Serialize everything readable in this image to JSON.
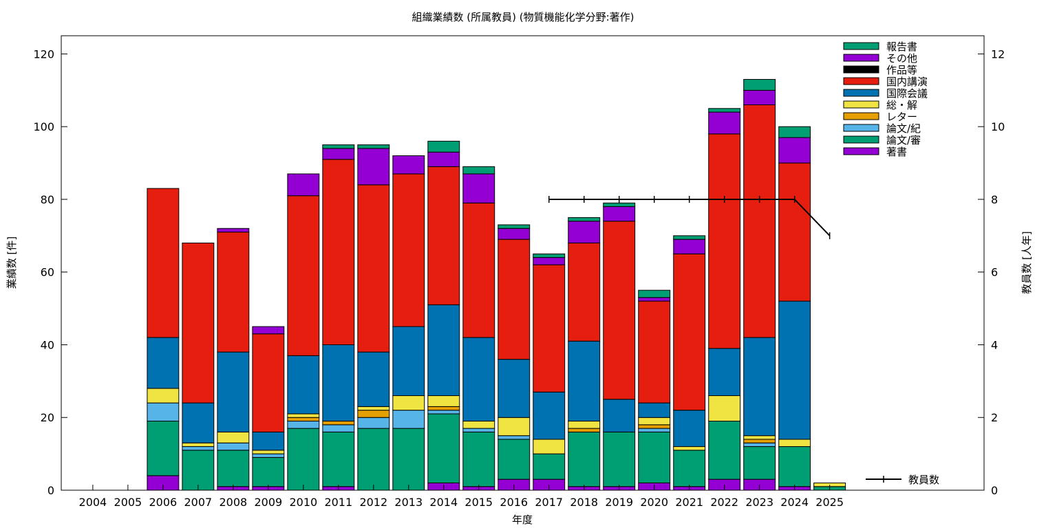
{
  "chart_data": {
    "type": "bar",
    "stacked": true,
    "title": "組織業績数 (所属教員) (物質機能化学分野:著作)",
    "xlabel": "年度",
    "ylabel": "業績数 [件]",
    "y2label": "教員数 [人年]",
    "ylim": [
      0,
      125
    ],
    "y2lim": [
      0,
      12.5
    ],
    "yticks": [
      0,
      20,
      40,
      60,
      80,
      100,
      120
    ],
    "y2ticks": [
      0,
      2,
      4,
      6,
      8,
      10,
      12
    ],
    "grid": false,
    "legend_position": "top-right",
    "categories": [
      "2004",
      "2005",
      "2006",
      "2007",
      "2008",
      "2009",
      "2010",
      "2011",
      "2012",
      "2013",
      "2014",
      "2015",
      "2016",
      "2017",
      "2018",
      "2019",
      "2020",
      "2021",
      "2022",
      "2023",
      "2024",
      "2025"
    ],
    "series": [
      {
        "name": "著書",
        "color": "#9400d3",
        "values": [
          0,
          0,
          4,
          0,
          1,
          1,
          0,
          1,
          0,
          0,
          2,
          1,
          3,
          3,
          1,
          1,
          2,
          1,
          3,
          3,
          1,
          0
        ]
      },
      {
        "name": "論文/審",
        "color": "#009e73",
        "values": [
          0,
          0,
          15,
          11,
          10,
          8,
          17,
          15,
          17,
          17,
          19,
          15,
          11,
          7,
          15,
          15,
          14,
          10,
          16,
          9,
          11,
          1
        ]
      },
      {
        "name": "論文/紀",
        "color": "#56b4e9",
        "values": [
          0,
          0,
          5,
          1,
          2,
          1,
          2,
          2,
          3,
          5,
          1,
          1,
          1,
          0,
          0,
          0,
          1,
          0,
          0,
          1,
          0,
          0
        ]
      },
      {
        "name": "レター",
        "color": "#e69f00",
        "values": [
          0,
          0,
          0,
          0,
          0,
          0,
          1,
          1,
          2,
          0,
          1,
          0,
          0,
          0,
          1,
          0,
          1,
          0,
          0,
          1,
          0,
          0
        ]
      },
      {
        "name": "総・解",
        "color": "#f0e442",
        "values": [
          0,
          0,
          4,
          1,
          3,
          1,
          1,
          0,
          1,
          4,
          3,
          2,
          5,
          4,
          2,
          0,
          2,
          1,
          7,
          1,
          2,
          1
        ]
      },
      {
        "name": "国際会議",
        "color": "#0072b2",
        "values": [
          0,
          0,
          14,
          11,
          22,
          5,
          16,
          21,
          15,
          19,
          25,
          23,
          16,
          13,
          22,
          9,
          4,
          10,
          13,
          27,
          38,
          0
        ]
      },
      {
        "name": "国内講演",
        "color": "#e51e10",
        "values": [
          0,
          0,
          41,
          44,
          33,
          27,
          44,
          51,
          46,
          42,
          38,
          37,
          33,
          35,
          27,
          49,
          28,
          43,
          59,
          64,
          38,
          0
        ]
      },
      {
        "name": "作品等",
        "color": "#000000",
        "values": [
          0,
          0,
          0,
          0,
          0,
          0,
          0,
          0,
          0,
          0,
          0,
          0,
          0,
          0,
          0,
          0,
          0,
          0,
          0,
          0,
          0,
          0
        ]
      },
      {
        "name": "その他",
        "color": "#9400d3",
        "values": [
          0,
          0,
          0,
          0,
          1,
          2,
          6,
          3,
          10,
          5,
          4,
          8,
          3,
          2,
          6,
          4,
          1,
          4,
          6,
          4,
          7,
          0
        ]
      },
      {
        "name": "報告書",
        "color": "#009e73",
        "values": [
          0,
          0,
          0,
          0,
          0,
          0,
          0,
          1,
          1,
          0,
          3,
          2,
          1,
          1,
          1,
          1,
          2,
          1,
          1,
          3,
          3,
          0
        ]
      }
    ],
    "line_series": {
      "name": "教員数",
      "axis": "y2",
      "color": "#000000",
      "categories": [
        "2017",
        "2018",
        "2019",
        "2020",
        "2021",
        "2022",
        "2023",
        "2024",
        "2025"
      ],
      "values": [
        8,
        8,
        8,
        8,
        8,
        8,
        8,
        8,
        7
      ]
    }
  }
}
